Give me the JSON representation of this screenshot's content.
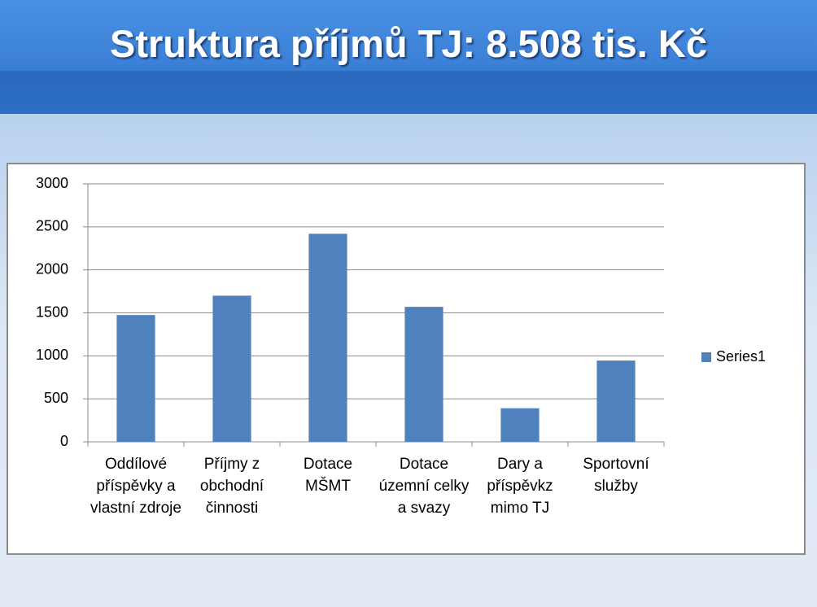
{
  "chart_data": {
    "type": "bar",
    "title": "Struktura příjmů TJ: 8.508 tis. Kč",
    "categories": [
      "Oddílové příspěvky a vlastní zdroje",
      "Příjmy z obchodní činnosti",
      "Dotace MŠMT",
      "Dotace územní celky a svazy",
      "Dary a příspěvkz mimo TJ",
      "Sportovní služby"
    ],
    "series": [
      {
        "name": "Series1",
        "color": "#4f81bd",
        "values": [
          1475,
          1700,
          2420,
          1570,
          390,
          945
        ]
      }
    ],
    "ylim": [
      0,
      3000
    ],
    "yticks": [
      0,
      500,
      1000,
      1500,
      2000,
      2500,
      3000
    ],
    "grid": true,
    "legend": "right"
  }
}
